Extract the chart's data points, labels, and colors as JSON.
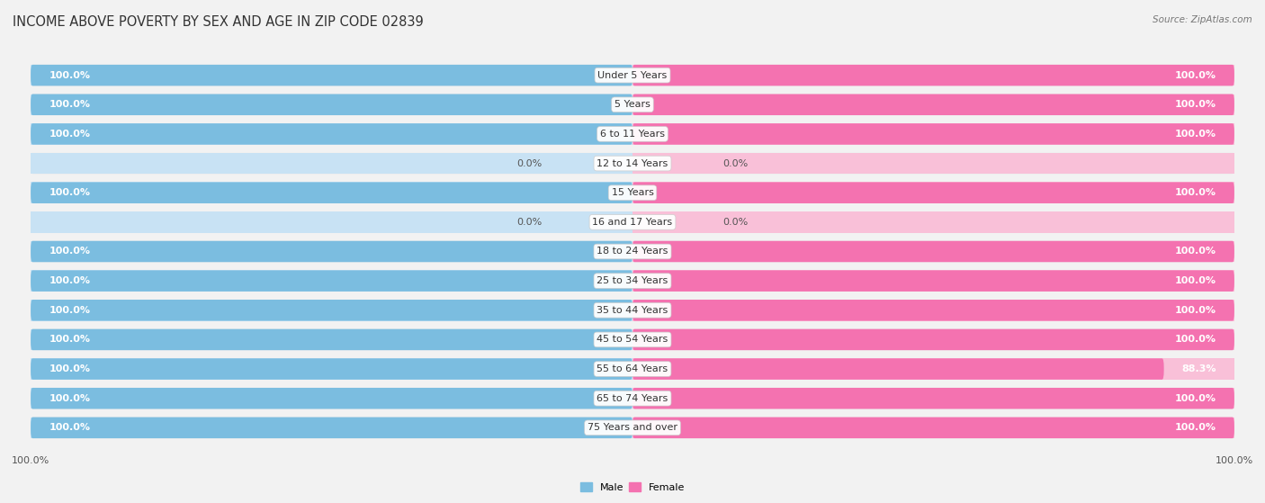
{
  "title": "INCOME ABOVE POVERTY BY SEX AND AGE IN ZIP CODE 02839",
  "source": "Source: ZipAtlas.com",
  "categories": [
    "Under 5 Years",
    "5 Years",
    "6 to 11 Years",
    "12 to 14 Years",
    "15 Years",
    "16 and 17 Years",
    "18 to 24 Years",
    "25 to 34 Years",
    "35 to 44 Years",
    "45 to 54 Years",
    "55 to 64 Years",
    "65 to 74 Years",
    "75 Years and over"
  ],
  "male_values": [
    100.0,
    100.0,
    100.0,
    0.0,
    100.0,
    0.0,
    100.0,
    100.0,
    100.0,
    100.0,
    100.0,
    100.0,
    100.0
  ],
  "female_values": [
    100.0,
    100.0,
    100.0,
    0.0,
    100.0,
    0.0,
    100.0,
    100.0,
    100.0,
    100.0,
    88.3,
    100.0,
    100.0
  ],
  "male_color": "#7bbde0",
  "female_color": "#f472b0",
  "male_color_light": "#c8e2f4",
  "female_color_light": "#f9c0d8",
  "bg_color": "#f2f2f2",
  "row_bg_color": "#e8e8e8",
  "max_value": 100.0,
  "bar_height": 0.72,
  "title_fontsize": 10.5,
  "label_fontsize": 8,
  "value_fontsize": 8,
  "tick_fontsize": 8
}
